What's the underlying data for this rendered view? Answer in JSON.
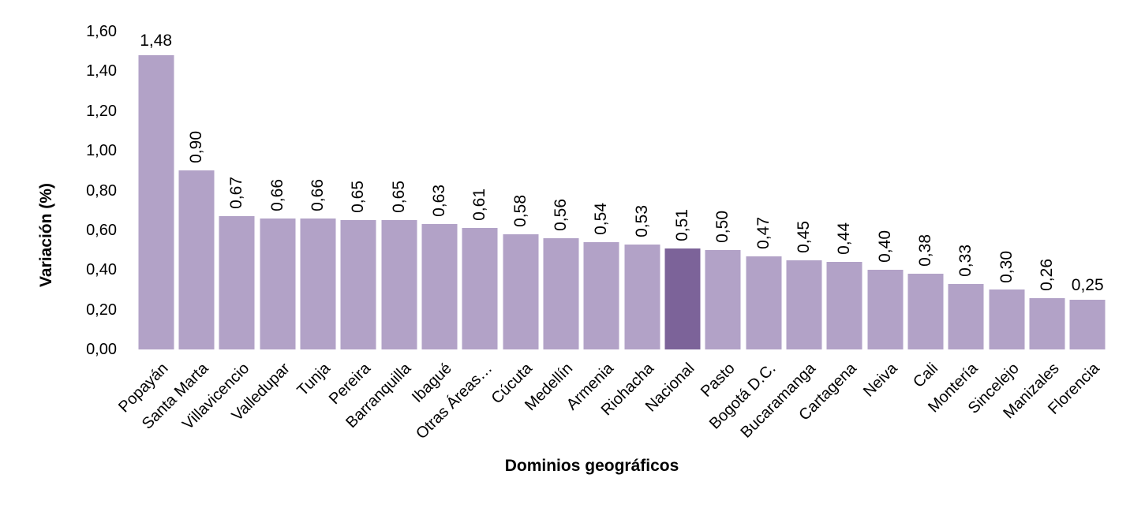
{
  "chart_data": {
    "type": "bar",
    "title": "",
    "xlabel": "Dominios geográficos",
    "ylabel": "Variación (%)",
    "categories": [
      "Popayán",
      "Santa Marta",
      "Villavicencio",
      "Valledupar",
      "Tunja",
      "Pereira",
      "Barranquilla",
      "Ibagué",
      "Otras Áreas…",
      "Cúcuta",
      "Medellín",
      "Armenia",
      "Riohacha",
      "Nacional",
      "Pasto",
      "Bogotá D.C.",
      "Bucaramanga",
      "Cartagena",
      "Neiva",
      "Cali",
      "Montería",
      "Sincelejo",
      "Manizales",
      "Florencia"
    ],
    "values": [
      1.48,
      0.9,
      0.67,
      0.66,
      0.66,
      0.65,
      0.65,
      0.63,
      0.61,
      0.58,
      0.56,
      0.54,
      0.53,
      0.51,
      0.5,
      0.47,
      0.45,
      0.44,
      0.4,
      0.38,
      0.33,
      0.3,
      0.26,
      0.25
    ],
    "value_labels": [
      "1,48",
      "0,90",
      "0,67",
      "0,66",
      "0,66",
      "0,65",
      "0,65",
      "0,63",
      "0,61",
      "0,58",
      "0,56",
      "0,54",
      "0,53",
      "0,51",
      "0,50",
      "0,47",
      "0,45",
      "0,44",
      "0,40",
      "0,38",
      "0,33",
      "0,30",
      "0,26",
      "0,25"
    ],
    "horizontal_value_label_indices": [
      0,
      23
    ],
    "highlight_category": "Nacional",
    "ylim": [
      0,
      1.6
    ],
    "ytick_step": 0.2,
    "ytick_labels": [
      "0,00",
      "0,20",
      "0,40",
      "0,60",
      "0,80",
      "1,00",
      "1,20",
      "1,40",
      "1,60"
    ],
    "grid": false,
    "legend": "none",
    "colors": {
      "bar": "#b2a2c7",
      "highlight": "#7c6399",
      "text": "#000000",
      "background": "#ffffff"
    }
  }
}
